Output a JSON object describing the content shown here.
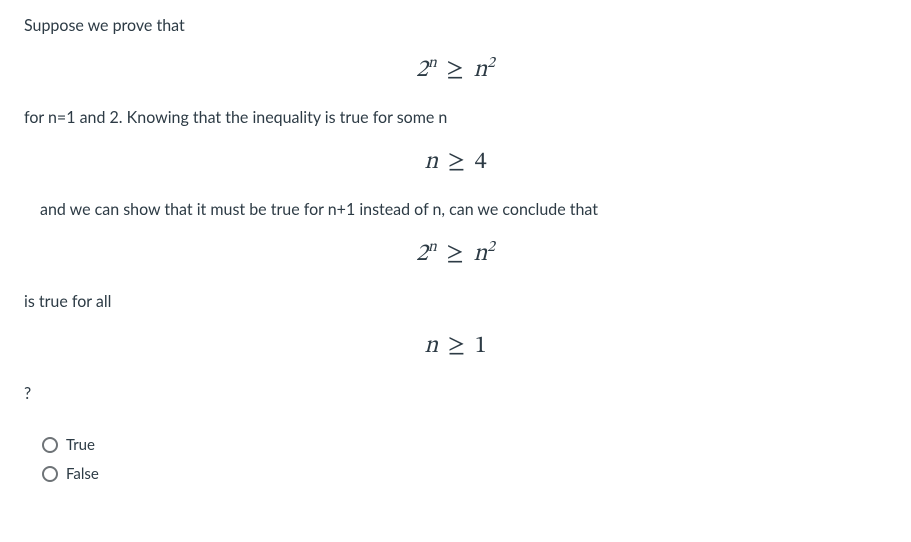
{
  "question": {
    "line1": "Suppose we prove that",
    "math1": {
      "lhs_base": "2",
      "lhs_exp": "n",
      "op": "≥",
      "rhs_base": "n",
      "rhs_exp": "2"
    },
    "line2": "for n=1 and 2. Knowing that the inequality is true for some n",
    "math2": {
      "lhs": "n",
      "op": "≥",
      "rhs": "4"
    },
    "line3": "and we can show that it must be true for n+1 instead of n, can we conclude that",
    "math3": {
      "lhs_base": "2",
      "lhs_exp": "n",
      "op": "≥",
      "rhs_base": "n",
      "rhs_exp": "2"
    },
    "line4": "is true for all",
    "math4": {
      "lhs": "n",
      "op": "≥",
      "rhs": "1"
    },
    "line5": "?"
  },
  "options": {
    "a": "True",
    "b": "False"
  },
  "colors": {
    "text": "#2d3b45",
    "radio_border": "#6e7377",
    "background": "#ffffff"
  },
  "typography": {
    "body_fontsize": 16,
    "math_fontsize": 24,
    "option_fontsize": 15
  }
}
